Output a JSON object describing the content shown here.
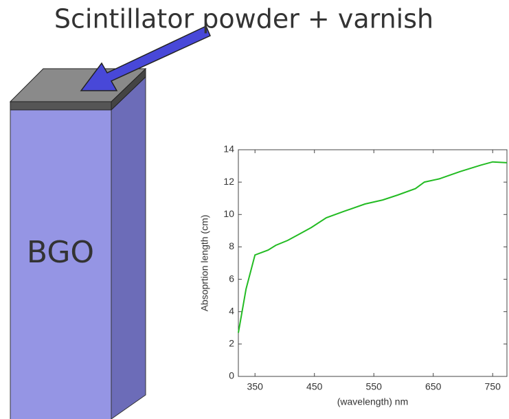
{
  "diagram": {
    "title": "Scintillator powder + varnish",
    "block_label": "BGO"
  },
  "chart_data": {
    "type": "line",
    "x_label": "(wavelength) nm",
    "y_label": "Absoprtion length (cm)",
    "x": [
      322,
      335,
      350,
      372,
      385,
      405,
      425,
      445,
      470,
      500,
      535,
      565,
      590,
      620,
      635,
      660,
      695,
      730,
      750,
      774
    ],
    "series": [
      {
        "name": "Absorption length",
        "color": "#22bb22",
        "values": [
          2.7,
          5.4,
          7.5,
          7.8,
          8.1,
          8.4,
          8.8,
          9.2,
          9.8,
          10.2,
          10.65,
          10.9,
          11.2,
          11.6,
          12.0,
          12.2,
          12.65,
          13.05,
          13.25,
          13.2
        ]
      }
    ],
    "xlim": [
      322,
      774
    ],
    "ylim": [
      0,
      14
    ],
    "xticks": [
      350,
      450,
      550,
      650,
      750
    ],
    "yticks": [
      0,
      2,
      4,
      6,
      8,
      10,
      12,
      14
    ]
  }
}
